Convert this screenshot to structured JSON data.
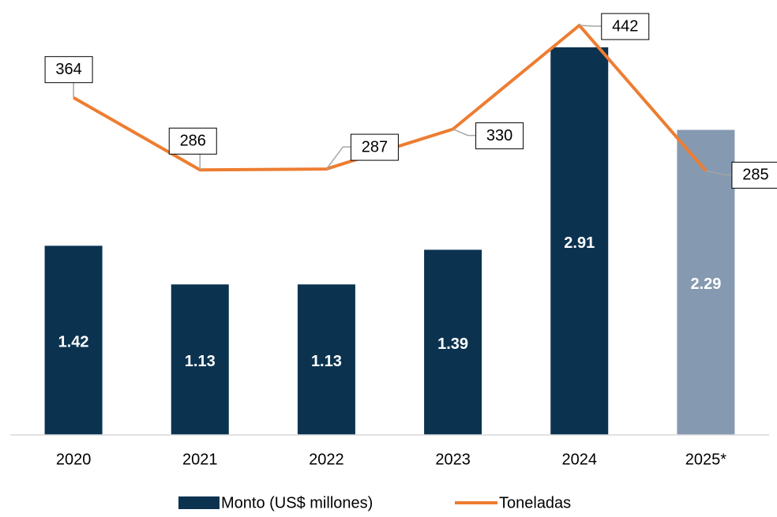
{
  "chart_data": {
    "type": "bar+line",
    "categories": [
      "2020",
      "2021",
      "2022",
      "2023",
      "2024",
      "2025*"
    ],
    "ylim": [
      0,
      3.2
    ],
    "y2lim": [
      0,
      460
    ],
    "legend": "bottom",
    "series": [
      {
        "name": "Monto (US$ millones)",
        "type": "bar",
        "color": "#0b3350",
        "point_colors": [
          "#0b3350",
          "#0b3350",
          "#0b3350",
          "#0b3350",
          "#0b3350",
          "#8599b0"
        ],
        "values": [
          1.42,
          1.13,
          1.13,
          1.39,
          2.91,
          2.29
        ]
      },
      {
        "name": "Toneladas",
        "type": "line",
        "axis": "y2",
        "color": "#ed7d31",
        "values": [
          364,
          286,
          287,
          330,
          442,
          285
        ]
      }
    ]
  }
}
